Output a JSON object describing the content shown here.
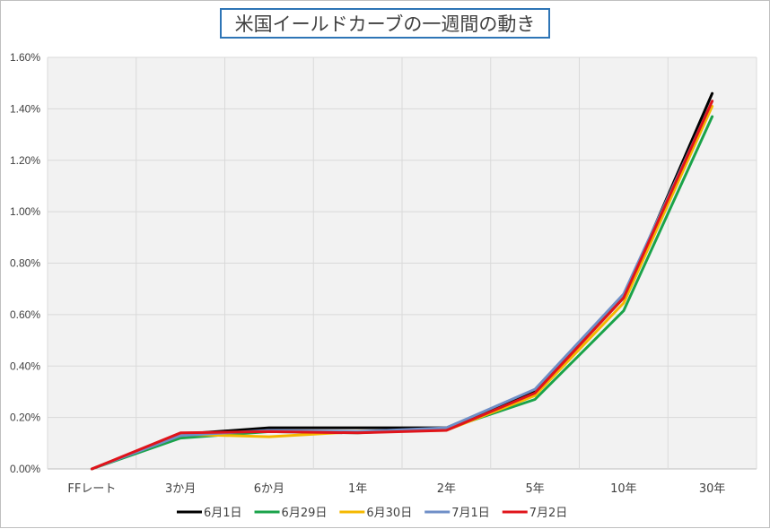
{
  "chart_data": {
    "type": "line",
    "title": "米国イールドカーブの一週間の動き",
    "categories": [
      "FFレート",
      "3か月",
      "6か月",
      "1年",
      "2年",
      "5年",
      "10年",
      "30年"
    ],
    "ylim": [
      0,
      1.6
    ],
    "yticks": [
      "0.00%",
      "0.20%",
      "0.40%",
      "0.60%",
      "0.80%",
      "1.00%",
      "1.20%",
      "1.40%",
      "1.60%"
    ],
    "grid": true,
    "legend_position": "bottom",
    "series": [
      {
        "name": "6月1日",
        "color": "#000000",
        "values": [
          0.0,
          0.135,
          0.16,
          0.16,
          0.16,
          0.3,
          0.665,
          1.46
        ]
      },
      {
        "name": "6月29日",
        "color": "#1aa34a",
        "values": [
          0.0,
          0.12,
          0.145,
          0.14,
          0.155,
          0.27,
          0.615,
          1.37
        ]
      },
      {
        "name": "6月30日",
        "color": "#f5b800",
        "values": [
          0.0,
          0.135,
          0.125,
          0.145,
          0.15,
          0.285,
          0.645,
          1.41
        ]
      },
      {
        "name": "7月1日",
        "color": "#6f8fc7",
        "values": [
          0.0,
          0.13,
          0.15,
          0.145,
          0.16,
          0.31,
          0.68,
          1.43
        ]
      },
      {
        "name": "7月2日",
        "color": "#e0141b",
        "values": [
          0.0,
          0.14,
          0.145,
          0.14,
          0.15,
          0.295,
          0.665,
          1.43
        ]
      }
    ]
  }
}
